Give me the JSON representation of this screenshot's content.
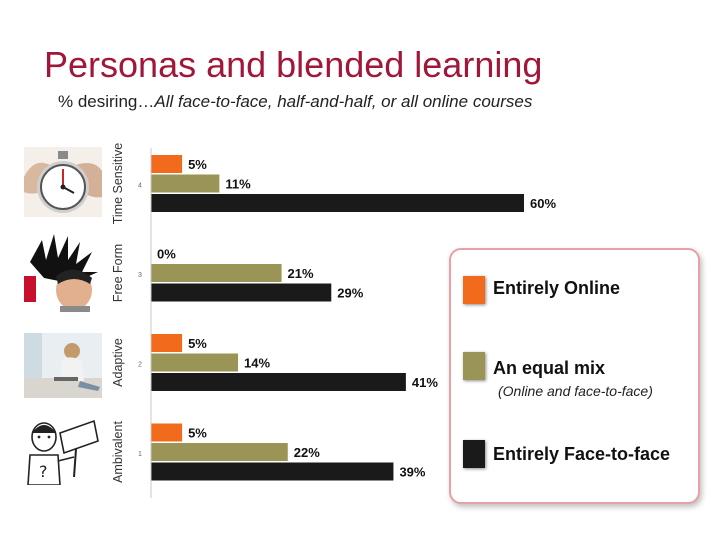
{
  "title": "Personas and blended learning",
  "subtitle": {
    "prefix": "% desiring…",
    "rest": "All face-to-face, half-and-half, or all online courses"
  },
  "colors": {
    "online": "#f26a1b",
    "mix": "#9a9556",
    "face": "#1a1a1a",
    "title": "#a0173a"
  },
  "chart_data": {
    "type": "bar",
    "orientation": "horizontal",
    "categories": [
      "Time Sensitive",
      "Free Form",
      "Adaptive",
      "Ambivalent"
    ],
    "category_numbers": [
      "4",
      "3",
      "2",
      "1"
    ],
    "value_unit": "%",
    "xlim": [
      0,
      60
    ],
    "grid": false,
    "legend_placement": "right",
    "series": [
      {
        "name": "Entirely Online",
        "color": "#f26a1b",
        "values": [
          5,
          0,
          5,
          5
        ]
      },
      {
        "name": "An equal mix",
        "note": "(Online and face-to-face)",
        "color": "#9a9556",
        "values": [
          11,
          21,
          14,
          22
        ]
      },
      {
        "name": "Entirely Face-to-face",
        "color": "#1a1a1a",
        "values": [
          60,
          29,
          41,
          39
        ]
      }
    ]
  },
  "persona_icons": [
    "stopwatch-icon",
    "spiky-hair-person-icon",
    "person-with-laptop-icon",
    "who-cares-sign-person-icon"
  ]
}
